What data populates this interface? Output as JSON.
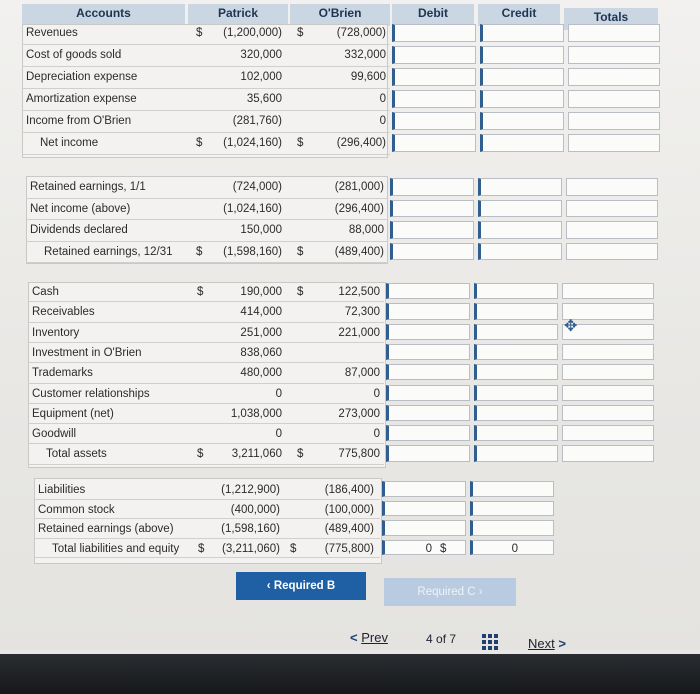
{
  "headers": {
    "accounts": "Accounts",
    "patrick": "Patrick",
    "obrien": "O'Brien",
    "debit": "Debit",
    "credit": "Credit",
    "totals": "Totals"
  },
  "income": [
    {
      "label": "Revenues",
      "patrick_dollar": "$",
      "patrick": "(1,200,000)",
      "obrien_dollar": "$",
      "obrien": "(728,000)"
    },
    {
      "label": "Cost of goods sold",
      "patrick": "320,000",
      "obrien": "332,000"
    },
    {
      "label": "Depreciation expense",
      "patrick": "102,000",
      "obrien": "99,600"
    },
    {
      "label": "Amortization expense",
      "patrick": "35,600",
      "obrien": "0"
    },
    {
      "label": "Income from O'Brien",
      "patrick": "(281,760)",
      "obrien": "0"
    },
    {
      "label": "Net income",
      "patrick_dollar": "$",
      "patrick": "(1,024,160)",
      "obrien_dollar": "$",
      "obrien": "(296,400)"
    }
  ],
  "retained": [
    {
      "label": "Retained earnings, 1/1",
      "patrick": "(724,000)",
      "obrien": "(281,000)"
    },
    {
      "label": "Net income (above)",
      "patrick": "(1,024,160)",
      "obrien": "(296,400)"
    },
    {
      "label": "Dividends declared",
      "patrick": "150,000",
      "obrien": "88,000"
    },
    {
      "label": "Retained earnings, 12/31",
      "patrick_dollar": "$",
      "patrick": "(1,598,160)",
      "obrien_dollar": "$",
      "obrien": "(489,400)"
    }
  ],
  "assets": [
    {
      "label": "Cash",
      "patrick_dollar": "$",
      "patrick": "190,000",
      "obrien_dollar": "$",
      "obrien": "122,500"
    },
    {
      "label": "Receivables",
      "patrick": "414,000",
      "obrien": "72,300"
    },
    {
      "label": "Inventory",
      "patrick": "251,000",
      "obrien": "221,000"
    },
    {
      "label": "Investment in O'Brien",
      "patrick": "838,060",
      "obrien": ""
    },
    {
      "label": "Trademarks",
      "patrick": "480,000",
      "obrien": "87,000"
    },
    {
      "label": "Customer relationships",
      "patrick": "0",
      "obrien": "0"
    },
    {
      "label": "Equipment (net)",
      "patrick": "1,038,000",
      "obrien": "273,000"
    },
    {
      "label": "Goodwill",
      "patrick": "0",
      "obrien": "0"
    },
    {
      "label": "Total assets",
      "patrick_dollar": "$",
      "patrick": "3,211,060",
      "obrien_dollar": "$",
      "obrien": "775,800"
    }
  ],
  "liabilities": [
    {
      "label": "Liabilities",
      "patrick": "(1,212,900)",
      "obrien": "(186,400)"
    },
    {
      "label": "Common stock",
      "patrick": "(400,000)",
      "obrien": "(100,000)"
    },
    {
      "label": "Retained earnings (above)",
      "patrick": "(1,598,160)",
      "obrien": "(489,400)"
    },
    {
      "label": "Total liabilities and equity",
      "patrick_dollar": "$",
      "patrick": "(3,211,060)",
      "obrien_dollar": "$",
      "obrien": "(775,800)",
      "debit_dollar": "$",
      "debit_total": "0",
      "credit_dollar": "$",
      "credit_total": "0"
    }
  ],
  "nav": {
    "required_b": "Required B",
    "required_c": "Required C"
  },
  "pager": {
    "prev": "Prev",
    "page": "4",
    "of": "of",
    "total": "7",
    "next": "Next"
  },
  "colors": {
    "header_bg": "#cbd6e3",
    "nav_active": "#1f5fa3",
    "nav_inactive": "#b9cbe0"
  }
}
